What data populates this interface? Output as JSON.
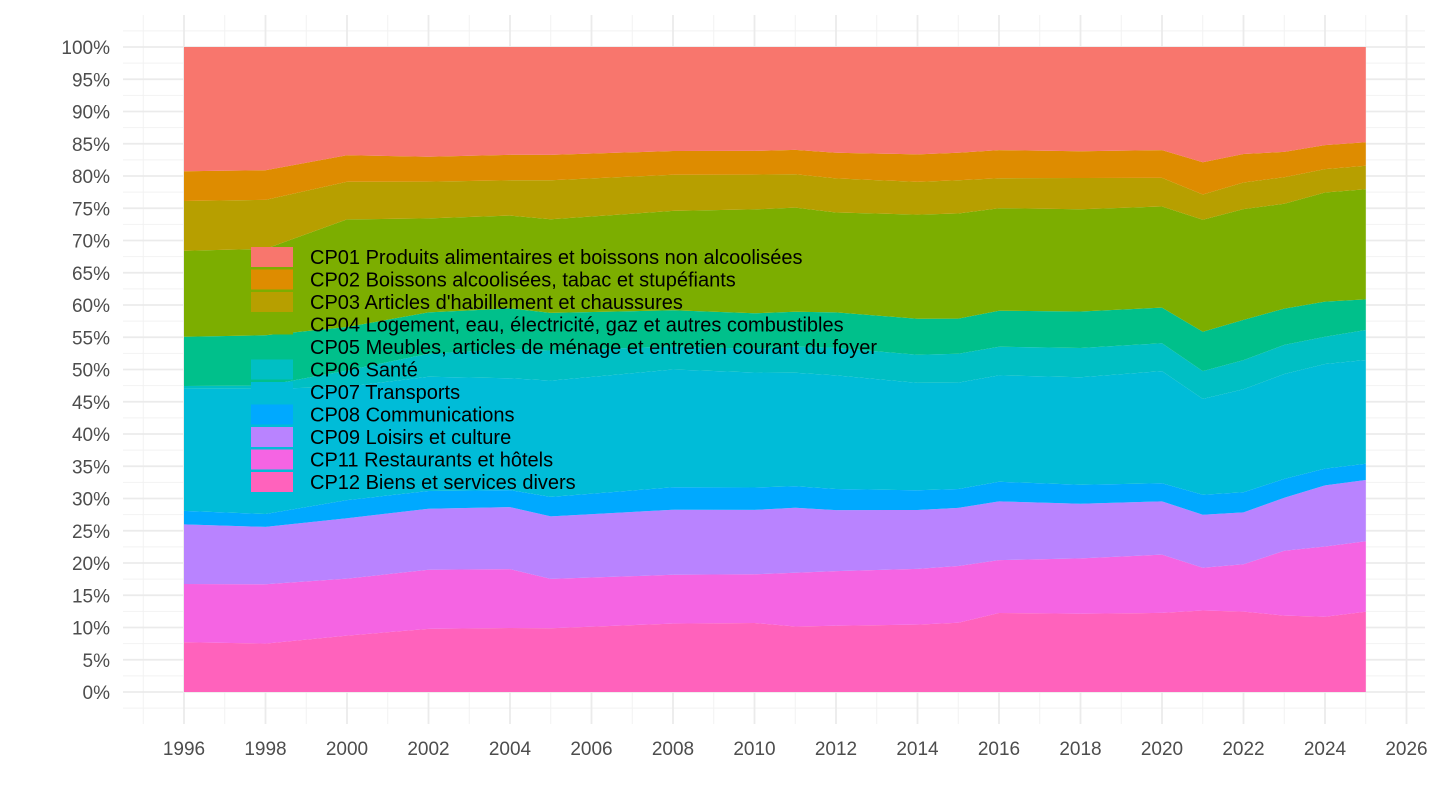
{
  "chart_data": {
    "type": "area",
    "stacked": true,
    "normalized": true,
    "title": "",
    "xlabel": "",
    "ylabel": "",
    "xlim": [
      1995,
      2026
    ],
    "ylim": [
      0,
      1
    ],
    "grid": true,
    "legend_position": "inside-top-left",
    "x_ticks": [
      "1996",
      "1998",
      "2000",
      "2002",
      "2004",
      "2006",
      "2008",
      "2010",
      "2012",
      "2014",
      "2016",
      "2018",
      "2020",
      "2022",
      "2024",
      "2026"
    ],
    "y_ticks": [
      "0%",
      "5%",
      "10%",
      "15%",
      "20%",
      "25%",
      "30%",
      "35%",
      "40%",
      "45%",
      "50%",
      "55%",
      "60%",
      "65%",
      "70%",
      "75%",
      "80%",
      "85%",
      "90%",
      "95%",
      "100%"
    ],
    "x": [
      1996,
      1998,
      2000,
      2002,
      2004,
      2005,
      2008,
      2010,
      2011,
      2012,
      2014,
      2015,
      2016,
      2018,
      2020,
      2021,
      2022,
      2023,
      2024,
      2025
    ],
    "series": [
      {
        "name": "CP12 Biens et services divers",
        "color": "#FF62BC",
        "values": [
          7.7,
          7.5,
          8.7,
          9.6,
          9.8,
          9.8,
          10.4,
          10.5,
          10.0,
          10.1,
          10.3,
          10.6,
          12.1,
          12.0,
          12.2,
          12.6,
          12.4,
          11.8,
          11.6,
          12.3
        ]
      },
      {
        "name": "CP11 Restaurants et hôtels",
        "color": "#F564E3",
        "values": [
          9.0,
          9.2,
          8.8,
          9.0,
          9.0,
          7.6,
          7.4,
          7.4,
          8.2,
          8.3,
          8.5,
          8.7,
          8.1,
          8.5,
          9.0,
          6.6,
          7.3,
          10.0,
          10.8,
          10.8
        ]
      },
      {
        "name": "CP09 Loisirs et culture",
        "color": "#B983FF",
        "values": [
          9.2,
          8.9,
          9.3,
          9.3,
          9.5,
          9.6,
          9.9,
          9.8,
          9.9,
          9.3,
          9.0,
          8.9,
          9.0,
          8.4,
          8.2,
          8.2,
          8.0,
          8.2,
          9.4,
          9.4
        ]
      },
      {
        "name": "CP08 Communications",
        "color": "#00A9FF",
        "values": [
          2.1,
          2.0,
          2.8,
          2.7,
          2.6,
          3.0,
          3.4,
          3.4,
          3.3,
          3.2,
          3.0,
          2.9,
          3.0,
          2.9,
          2.8,
          3.1,
          3.1,
          2.9,
          2.6,
          2.5
        ]
      },
      {
        "name": "CP07 Transports",
        "color": "#00BCD8",
        "values": [
          18.9,
          19.4,
          17.5,
          17.4,
          17.1,
          17.9,
          17.9,
          17.5,
          17.3,
          17.3,
          16.4,
          16.3,
          16.3,
          16.5,
          17.3,
          14.8,
          15.9,
          16.2,
          16.1,
          15.9
        ]
      },
      {
        "name": "CP06 Santé",
        "color": "#00BFC4",
        "values": [
          0.4,
          0.5,
          2.5,
          3.5,
          4.5,
          4.6,
          3.5,
          3.6,
          4.0,
          4.2,
          4.3,
          4.4,
          4.4,
          4.5,
          4.3,
          4.3,
          4.5,
          4.5,
          4.2,
          4.6
        ]
      },
      {
        "name": "CP05 Meubles, articles de ménage et entretien courant du foyer",
        "color": "#00C08B",
        "values": [
          7.6,
          7.8,
          6.7,
          6.3,
          6.2,
          5.8,
          5.5,
          5.4,
          5.3,
          5.4,
          5.5,
          5.4,
          5.5,
          5.6,
          5.5,
          6.1,
          6.2,
          5.6,
          5.4,
          4.7
        ]
      },
      {
        "name": "CP04 Logement, eau, électricité, gaz et autres combustibles",
        "color": "#7CAE00",
        "values": [
          13.3,
          13.4,
          16.6,
          14.3,
          14.2,
          14.4,
          15.1,
          15.8,
          15.9,
          15.2,
          15.9,
          16.1,
          15.7,
          15.7,
          15.6,
          17.3,
          17.1,
          16.2,
          16.8,
          16.9
        ]
      },
      {
        "name": "CP03 Articles d'habillement et chaussures",
        "color": "#B79F00",
        "values": [
          7.7,
          7.6,
          5.8,
          5.6,
          5.4,
          6.0,
          5.5,
          5.3,
          5.1,
          5.2,
          5.0,
          5.1,
          4.6,
          4.8,
          4.4,
          3.9,
          4.1,
          4.1,
          3.6,
          3.6
        ]
      },
      {
        "name": "CP02 Boissons alcoolisées, tabac et stupéfiants",
        "color": "#DE8C00",
        "values": [
          4.6,
          4.6,
          4.1,
          3.8,
          3.9,
          3.9,
          3.6,
          3.6,
          3.7,
          3.9,
          4.2,
          4.2,
          4.3,
          4.1,
          4.3,
          5.0,
          4.4,
          3.9,
          3.7,
          3.6
        ]
      },
      {
        "name": "CP01 Produits alimentaires et boissons non alcoolisées",
        "color": "#F8766D",
        "values": [
          19.2,
          19.1,
          16.7,
          16.7,
          16.5,
          16.6,
          15.8,
          15.8,
          15.7,
          16.1,
          16.4,
          16.2,
          15.8,
          16.0,
          15.9,
          17.8,
          16.5,
          16.2,
          15.1,
          14.6
        ]
      }
    ]
  }
}
